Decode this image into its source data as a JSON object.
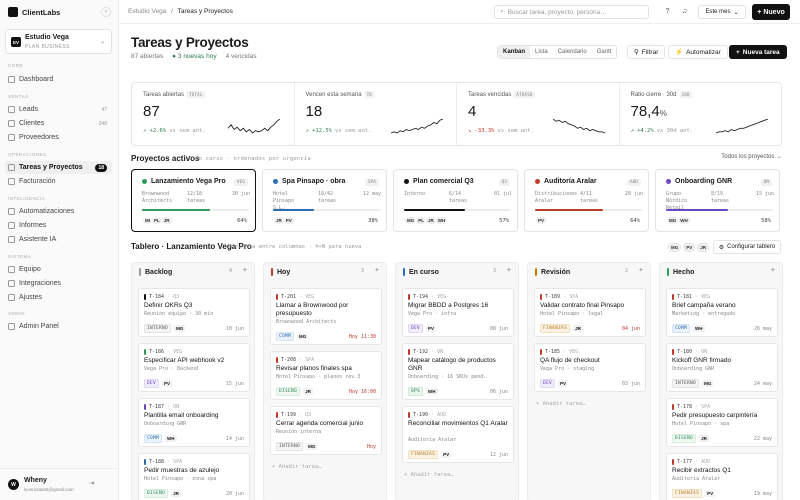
{
  "app": {
    "name": "ClientLabs",
    "collapse_icon": "chevron-left-icon"
  },
  "workspace": {
    "initials": "EV",
    "name": "Estudio Vega",
    "plan": "PLAN BUSINESS"
  },
  "nav": {
    "core": "CORE",
    "dashboard": "Dashboard",
    "ventas": "VENTAS",
    "leads": "Leads",
    "leads_count": "47",
    "clientes": "Clientes",
    "clientes_count": "248",
    "proveedores": "Proveedores",
    "operaciones": "OPERACIONES",
    "tareas": "Tareas y Proyectos",
    "tareas_count": "18",
    "facturacion": "Facturación",
    "inteligencia": "INTELIGENCIA",
    "automatizaciones": "Automatizaciones",
    "informes": "Informes",
    "asistente": "Asistente IA",
    "sistema": "SISTEMA",
    "equipo": "Equipo",
    "integraciones": "Integraciones",
    "ajustes": "Ajustes",
    "admin": "ADMIN",
    "admin_panel": "Admin Panel"
  },
  "user": {
    "initials": "W",
    "name": "Wheny",
    "email": "lyonrosado5@gmail.com"
  },
  "topbar": {
    "crumb_root": "Estudio Vega",
    "crumb_sep": "/",
    "crumb_current": "Tareas y Proyectos",
    "search_placeholder": "Buscar tarea, proyecto, persona…",
    "period": "Este mes",
    "new_label": "Nuevo"
  },
  "page": {
    "title": "Tareas y Proyectos",
    "open": "87 abiertas",
    "today": "3 nuevas hoy",
    "overdue": "4 vencidas",
    "views": [
      "Kanban",
      "Lista",
      "Calendario",
      "Gantt"
    ],
    "filter": "Filtrar",
    "automate": "Automatizar",
    "new_task": "Nueva tarea"
  },
  "kpis": [
    {
      "label": "Tareas abiertas",
      "tag": "TOTAL",
      "value": "87",
      "unit": "",
      "delta": "+2.6%",
      "delta_note": "vs sem ant.",
      "trend": "down",
      "spark": [
        6,
        9,
        5,
        7,
        4,
        6,
        3,
        5,
        2,
        4,
        3,
        4,
        6,
        4,
        7,
        9,
        12,
        14
      ]
    },
    {
      "label": "Vencen esta semana",
      "tag": "7D",
      "value": "18",
      "unit": "",
      "delta": "+12.5%",
      "delta_note": "vs sem ant.",
      "trend": "up",
      "spark": [
        2,
        3,
        2,
        4,
        3,
        5,
        4,
        5,
        6,
        5,
        7,
        6,
        8,
        9,
        11,
        10,
        13,
        14
      ]
    },
    {
      "label": "Tareas vencidas",
      "tag": "ATRASO",
      "value": "4",
      "unit": "",
      "delta": "-33.3%",
      "delta_note": "vs sem ant.",
      "trend": "down",
      "spark": [
        14,
        12,
        13,
        11,
        12,
        10,
        9,
        8,
        6,
        7,
        5,
        6,
        4,
        5,
        4,
        3,
        3,
        2
      ]
    },
    {
      "label": "Ratio cierre · 30d",
      "tag": "30D",
      "value": "78,4",
      "unit": "%",
      "delta": "+4.2%",
      "delta_note": "vs 30d ant.",
      "trend": "up",
      "spark": [
        2,
        3,
        3,
        4,
        3,
        5,
        4,
        5,
        6,
        6,
        7,
        8,
        9,
        10,
        11,
        12,
        13,
        14
      ]
    }
  ],
  "projects": {
    "title": "Proyectos activos",
    "hint": "5 en curso · ordenados por urgencia",
    "all": "Todos los proyectos →",
    "items": [
      {
        "name": "Lanzamiento Vega Pro",
        "code": "VEG",
        "client": "Brownwood Architects",
        "tasks": "12/18 tareas",
        "date": "30 jun",
        "progress": 0.64,
        "pct": "64%",
        "color": "#2e9d5b",
        "avatars": [
          "MI",
          "PL",
          "JR"
        ]
      },
      {
        "name": "Spa Pinsapo · obra",
        "code": "SPA",
        "client": "Hotel Pinsapo S.L.",
        "tasks": "18/42 tareas",
        "date": "12 may",
        "progress": 0.38,
        "pct": "38%",
        "color": "#2b6cb0",
        "avatars": [
          "JR",
          "PV"
        ]
      },
      {
        "name": "Plan comercial Q3",
        "code": "Q3",
        "client": "Interno",
        "tasks": "6/14 tareas",
        "date": "01 jul",
        "progress": 0.57,
        "pct": "57%",
        "color": "#111111",
        "avatars": [
          "MG",
          "PL",
          "JR",
          "WH"
        ]
      },
      {
        "name": "Auditoría Aralar",
        "code": "AUD",
        "client": "Distribuciones Aralar",
        "tasks": "4/11 tareas",
        "date": "20 jun",
        "progress": 0.64,
        "pct": "64%",
        "color": "#c0392b",
        "avatars": [
          "PV"
        ]
      },
      {
        "name": "Onboarding GNR",
        "code": "ON",
        "client": "Grupo Nórdico Retail",
        "tasks": "8/19 tareas",
        "date": "15 jun",
        "progress": 0.58,
        "pct": "58%",
        "color": "#6b46c1",
        "avatars": [
          "MG",
          "WH"
        ]
      }
    ]
  },
  "board": {
    "title": "Tablero · Lanzamiento Vega Pro",
    "hint": "arrastra entre columnas · ⌘+N para nueva",
    "avatars": [
      "MG",
      "PV",
      "JR"
    ],
    "config": "Configurar tablero",
    "add_task": "+ Añadir tarea…",
    "columns": [
      {
        "name": "Backlog",
        "count": "4",
        "color": "#999999",
        "cards": [
          {
            "id": "T-184",
            "proj": "Q3",
            "title": "Definir OKRs Q3",
            "sub": "Reunión equipo · 30 min",
            "tag": "INTERNO",
            "tagc": "int",
            "who": "MG",
            "date": "10 jun",
            "late": false,
            "pc": "#111111"
          },
          {
            "id": "T-186",
            "proj": "VEG",
            "title": "Especificar API webhook v2",
            "sub": "Vega Pro · Backend",
            "tag": "DEV",
            "tagc": "dev",
            "who": "PV",
            "date": "15 jun",
            "late": false,
            "pc": "#2e9d5b"
          },
          {
            "id": "T-187",
            "proj": "ON",
            "title": "Plantilla email onboarding",
            "sub": "Onboarding GNR",
            "tag": "COMM",
            "tagc": "comm",
            "who": "WH",
            "date": "14 jun",
            "late": false,
            "pc": "#6b46c1"
          },
          {
            "id": "T-188",
            "proj": "SPA",
            "title": "Pedir muestras de azulejo",
            "sub": "Hotel Pinsapo · zona spa",
            "tag": "DISEÑO",
            "tagc": "dis",
            "who": "JR",
            "date": "20 jun",
            "late": false,
            "pc": "#2b6cb0"
          }
        ]
      },
      {
        "name": "Hoy",
        "count": "3",
        "color": "#c0392b",
        "cards": [
          {
            "id": "T-201",
            "proj": "VEG",
            "title": "Llamar a Brownwood por presupuesto",
            "sub": "Brownwood Architects",
            "tag": "COMM",
            "tagc": "comm",
            "who": "MG",
            "date": "Hoy 11:30",
            "late": true,
            "pc": "#c0392b"
          },
          {
            "id": "T-208",
            "proj": "SPA",
            "title": "Revisar planos finales spa",
            "sub": "Hotel Pinsapo · planos rev.3",
            "tag": "DISEÑO",
            "tagc": "dis",
            "who": "JR",
            "date": "Hoy 16:00",
            "late": true,
            "pc": "#c0392b"
          },
          {
            "id": "T-199",
            "proj": "Q3",
            "title": "Cerrar agenda comercial junio",
            "sub": "Reunión interna",
            "tag": "INTERNO",
            "tagc": "int",
            "who": "MG",
            "date": "Hoy",
            "late": true,
            "pc": "#c0392b"
          }
        ]
      },
      {
        "name": "En curso",
        "count": "3",
        "color": "#2b6cb0",
        "cards": [
          {
            "id": "T-194",
            "proj": "VEG",
            "title": "Migrar BBDD a Postgres 16",
            "sub": "Vega Pro · infra",
            "tag": "DEV",
            "tagc": "dev",
            "who": "PV",
            "date": "08 jun",
            "late": false,
            "pc": "#c0392b"
          },
          {
            "id": "T-192",
            "proj": "ON",
            "title": "Mapear catálogo de productos GNR",
            "sub": "Onboarding · 16 SKUs pend.",
            "tag": "OPS",
            "tagc": "ops",
            "who": "WH",
            "date": "06 jun",
            "late": false,
            "pc": "#c0392b"
          },
          {
            "id": "T-190",
            "proj": "AUD",
            "title": "Reconciliar movimientos Q1 Aralar",
            "sub": "Auditoría Aralar",
            "tag": "FINANZAS",
            "tagc": "fin",
            "who": "PV",
            "date": "12 jun",
            "late": false,
            "pc": "#c0392b"
          }
        ]
      },
      {
        "name": "Revisión",
        "count": "2",
        "color": "#c77700",
        "cards": [
          {
            "id": "T-189",
            "proj": "SPA",
            "title": "Validar contrato final Pinsapo",
            "sub": "Hotel Pinsapo · legal",
            "tag": "FINANZAS",
            "tagc": "fin",
            "who": "JR",
            "date": "04 jun",
            "late": true,
            "pc": "#c0392b"
          },
          {
            "id": "T-185",
            "proj": "VEG",
            "title": "QA flujo de checkout",
            "sub": "Vega Pro · staging",
            "tag": "DEV",
            "tagc": "dev",
            "who": "PV",
            "date": "03 jun",
            "late": false,
            "pc": "#c0392b"
          }
        ]
      },
      {
        "name": "Hecho",
        "count": "",
        "color": "#2e9d5b",
        "cards": [
          {
            "id": "T-181",
            "proj": "VEG",
            "title": "Brief campaña verano",
            "sub": "Marketing · entregado",
            "tag": "COMM",
            "tagc": "comm",
            "who": "WH",
            "date": "26 may",
            "late": false,
            "pc": "#c0392b"
          },
          {
            "id": "T-180",
            "proj": "ON",
            "title": "Kickoff GNR firmado",
            "sub": "Onboarding GNR",
            "tag": "INTERNO",
            "tagc": "int",
            "who": "MG",
            "date": "24 may",
            "late": false,
            "pc": "#c0392b"
          },
          {
            "id": "T-178",
            "proj": "SPA",
            "title": "Pedir presupuesto carpintería",
            "sub": "Hotel Pinsapo · spa",
            "tag": "DISEÑO",
            "tagc": "dis",
            "who": "JR",
            "date": "22 may",
            "late": false,
            "pc": "#c0392b"
          },
          {
            "id": "T-177",
            "proj": "AUD",
            "title": "Recibir extractos Q1",
            "sub": "Auditoría Aralar",
            "tag": "FINANZAS",
            "tagc": "fin",
            "who": "PV",
            "date": "19 may",
            "late": false,
            "pc": "#c0392b"
          }
        ]
      }
    ]
  }
}
